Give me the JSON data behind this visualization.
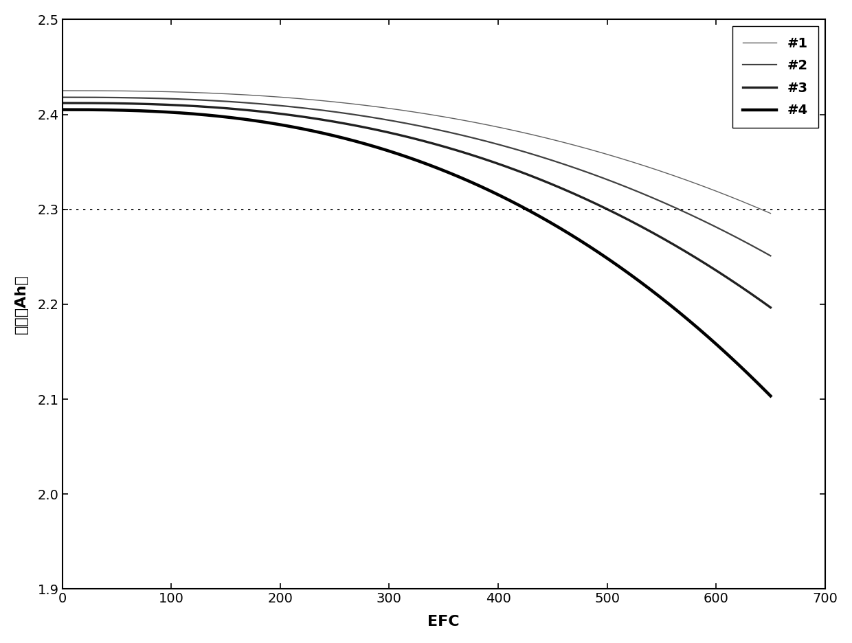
{
  "title": "",
  "xlabel": "EFC",
  "ylabel": "容量（Ah）",
  "xlim": [
    0,
    700
  ],
  "ylim": [
    1.9,
    2.5
  ],
  "xticks": [
    0,
    100,
    200,
    300,
    400,
    500,
    600,
    700
  ],
  "yticks": [
    1.9,
    2.0,
    2.1,
    2.2,
    2.3,
    2.4,
    2.5
  ],
  "dotted_line_y": 2.3,
  "series": [
    {
      "label": "#1",
      "C0": 2.425,
      "a": 1.2e-08,
      "b": 2.5,
      "linewidth": 1.0,
      "color": "#606060"
    },
    {
      "label": "#2",
      "C0": 2.418,
      "a": 1.55e-08,
      "b": 2.5,
      "linewidth": 1.6,
      "color": "#404040"
    },
    {
      "label": "#3",
      "C0": 2.412,
      "a": 2e-08,
      "b": 2.5,
      "linewidth": 2.4,
      "color": "#202020"
    },
    {
      "label": "#4",
      "C0": 2.405,
      "a": 2.8e-08,
      "b": 2.5,
      "linewidth": 3.2,
      "color": "#000000"
    }
  ],
  "legend_fontsize": 14,
  "axis_fontsize": 16,
  "tick_fontsize": 14,
  "background_color": "#ffffff",
  "figure_background": "#ffffff"
}
